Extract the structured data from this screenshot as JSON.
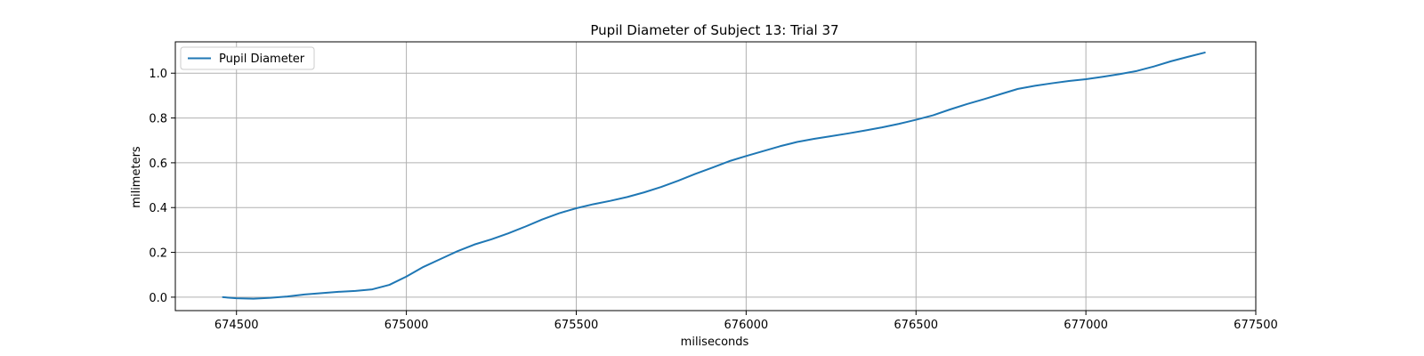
{
  "chart_data": {
    "type": "line",
    "title": "Pupil Diameter of Subject 13: Trial 37",
    "xlabel": "miliseconds",
    "ylabel": "milimeters",
    "xlim": [
      674320,
      677500
    ],
    "ylim": [
      -0.06,
      1.14
    ],
    "x_ticks": [
      674500,
      675000,
      675500,
      676000,
      676500,
      677000,
      677500
    ],
    "y_ticks": [
      0.0,
      0.2,
      0.4,
      0.6,
      0.8,
      1.0
    ],
    "y_tick_labels": [
      "0.0",
      "0.2",
      "0.4",
      "0.6",
      "0.8",
      "1.0"
    ],
    "grid": true,
    "legend_position": "top-left",
    "series_color": "#1f77b4",
    "series": [
      {
        "name": "Pupil Diameter",
        "x": [
          674460,
          674500,
          674550,
          674600,
          674650,
          674700,
          674750,
          674800,
          674850,
          674900,
          674950,
          675000,
          675050,
          675100,
          675150,
          675200,
          675250,
          675300,
          675350,
          675400,
          675450,
          675500,
          675550,
          675600,
          675650,
          675700,
          675750,
          675800,
          675850,
          675900,
          675950,
          676000,
          676050,
          676100,
          676150,
          676200,
          676250,
          676300,
          676350,
          676400,
          676450,
          676500,
          676550,
          676600,
          676650,
          676700,
          676750,
          676800,
          676850,
          676900,
          676950,
          677000,
          677050,
          677100,
          677150,
          677200,
          677250,
          677300,
          677350
        ],
        "y": [
          0.0,
          -0.005,
          -0.007,
          -0.003,
          0.003,
          0.012,
          0.018,
          0.024,
          0.028,
          0.035,
          0.055,
          0.092,
          0.135,
          0.17,
          0.205,
          0.235,
          0.258,
          0.285,
          0.315,
          0.347,
          0.375,
          0.397,
          0.415,
          0.43,
          0.447,
          0.468,
          0.492,
          0.52,
          0.55,
          0.578,
          0.607,
          0.63,
          0.652,
          0.674,
          0.693,
          0.707,
          0.719,
          0.731,
          0.744,
          0.758,
          0.774,
          0.792,
          0.812,
          0.838,
          0.862,
          0.884,
          0.907,
          0.93,
          0.944,
          0.955,
          0.965,
          0.973,
          0.984,
          0.996,
          1.01,
          1.03,
          1.053,
          1.073,
          1.092
        ]
      }
    ]
  }
}
